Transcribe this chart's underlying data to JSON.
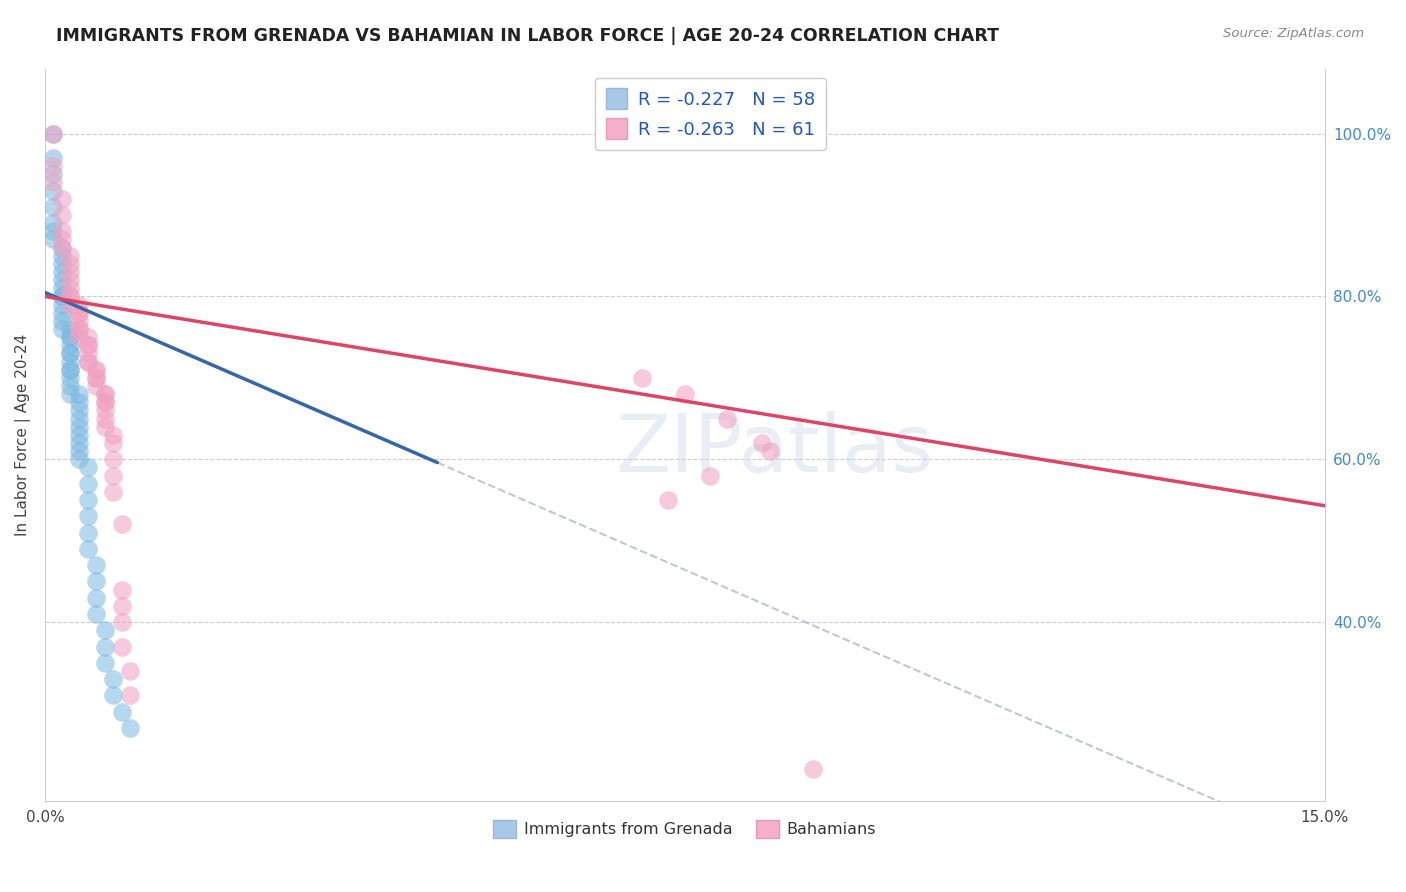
{
  "title": "IMMIGRANTS FROM GRENADA VS BAHAMIAN IN LABOR FORCE | AGE 20-24 CORRELATION CHART",
  "source": "Source: ZipAtlas.com",
  "ylabel": "In Labor Force | Age 20-24",
  "legend_1_label": "Immigrants from Grenada",
  "legend_1_color": "#a8c8e8",
  "legend_1_R": "-0.227",
  "legend_1_N": "58",
  "legend_2_label": "Bahamians",
  "legend_2_color": "#f4b0c8",
  "legend_2_R": "-0.263",
  "legend_2_N": "61",
  "blue_scatter_color": "#7ab8e0",
  "pink_scatter_color": "#f0a0c0",
  "trend_blue": "#3366aa",
  "trend_pink": "#dd4466",
  "dashed_color": "#aabbd0",
  "watermark": "ZIPatlas",
  "xlim": [
    0.0,
    0.15
  ],
  "ylim": [
    0.18,
    1.08
  ],
  "blue_x": [
    0.001,
    0.001,
    0.001,
    0.001,
    0.001,
    0.001,
    0.001,
    0.001,
    0.002,
    0.002,
    0.002,
    0.002,
    0.002,
    0.002,
    0.002,
    0.002,
    0.002,
    0.002,
    0.002,
    0.002,
    0.003,
    0.003,
    0.003,
    0.003,
    0.003,
    0.003,
    0.003,
    0.003,
    0.003,
    0.003,
    0.003,
    0.003,
    0.004,
    0.004,
    0.004,
    0.004,
    0.004,
    0.004,
    0.004,
    0.004,
    0.004,
    0.005,
    0.005,
    0.005,
    0.005,
    0.005,
    0.005,
    0.006,
    0.006,
    0.006,
    0.006,
    0.007,
    0.007,
    0.007,
    0.008,
    0.008,
    0.009,
    0.01
  ],
  "blue_y": [
    1.0,
    0.97,
    0.95,
    0.93,
    0.91,
    0.89,
    0.88,
    0.87,
    0.86,
    0.85,
    0.84,
    0.83,
    0.82,
    0.81,
    0.8,
    0.8,
    0.79,
    0.78,
    0.77,
    0.76,
    0.76,
    0.75,
    0.75,
    0.74,
    0.73,
    0.73,
    0.72,
    0.71,
    0.71,
    0.7,
    0.69,
    0.68,
    0.68,
    0.67,
    0.66,
    0.65,
    0.64,
    0.63,
    0.62,
    0.61,
    0.6,
    0.59,
    0.57,
    0.55,
    0.53,
    0.51,
    0.49,
    0.47,
    0.45,
    0.43,
    0.41,
    0.39,
    0.37,
    0.35,
    0.33,
    0.31,
    0.29,
    0.27
  ],
  "pink_x": [
    0.001,
    0.001,
    0.001,
    0.002,
    0.002,
    0.002,
    0.002,
    0.002,
    0.003,
    0.003,
    0.003,
    0.003,
    0.003,
    0.003,
    0.003,
    0.003,
    0.004,
    0.004,
    0.004,
    0.004,
    0.004,
    0.004,
    0.004,
    0.005,
    0.005,
    0.005,
    0.005,
    0.005,
    0.005,
    0.006,
    0.006,
    0.006,
    0.006,
    0.006,
    0.007,
    0.007,
    0.007,
    0.007,
    0.007,
    0.007,
    0.007,
    0.008,
    0.008,
    0.008,
    0.008,
    0.008,
    0.009,
    0.009,
    0.009,
    0.009,
    0.009,
    0.01,
    0.01,
    0.075,
    0.08,
    0.084,
    0.07,
    0.085,
    0.078,
    0.073,
    0.09
  ],
  "pink_y": [
    1.0,
    0.96,
    0.94,
    0.92,
    0.9,
    0.88,
    0.87,
    0.86,
    0.85,
    0.84,
    0.83,
    0.82,
    0.81,
    0.8,
    0.8,
    0.79,
    0.79,
    0.78,
    0.78,
    0.77,
    0.76,
    0.76,
    0.75,
    0.75,
    0.74,
    0.74,
    0.73,
    0.72,
    0.72,
    0.71,
    0.71,
    0.7,
    0.7,
    0.69,
    0.68,
    0.68,
    0.67,
    0.67,
    0.66,
    0.65,
    0.64,
    0.63,
    0.62,
    0.6,
    0.58,
    0.56,
    0.52,
    0.44,
    0.42,
    0.4,
    0.37,
    0.34,
    0.31,
    0.68,
    0.65,
    0.62,
    0.7,
    0.61,
    0.58,
    0.55,
    0.22
  ],
  "figsize": [
    14.06,
    8.92
  ],
  "dpi": 100,
  "blue_trend_x0": 0.0,
  "blue_trend_y0": 0.805,
  "blue_trend_x1": 0.046,
  "blue_trend_y1": 0.596,
  "pink_trend_x0": 0.0,
  "pink_trend_y0": 0.8,
  "pink_trend_x1": 0.15,
  "pink_trend_y1": 0.543
}
